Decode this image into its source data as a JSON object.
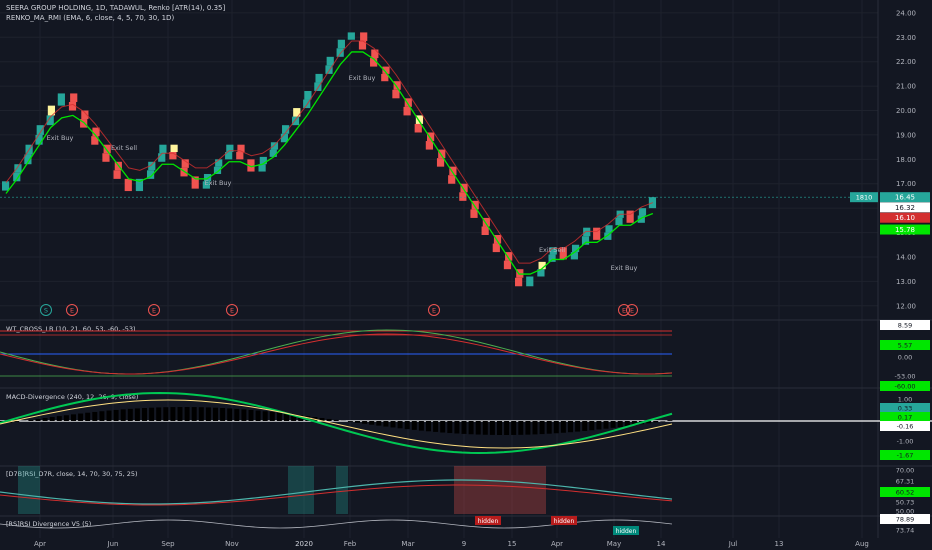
{
  "header": {
    "symbol_line": "SEERA GROUP HOLDING, 1D, TADAWUL, Renko [ATR(14), 0.35]",
    "indicator_line": "RENKO_MA_RMI (EMA, 6, close, 4, 5, 70, 30, 1D)"
  },
  "colors": {
    "background": "#131722",
    "grid": "#1e222d",
    "up_brick": "#26a69a",
    "down_brick": "#ef5350",
    "ma_line": "#00e600",
    "red_line": "#d32f2f",
    "yellow": "#ffeb3b"
  },
  "chart_data": [
    {
      "type": "renko",
      "title": "SEERA GROUP HOLDING, 1D, TADAWUL, Renko [ATR(14), 0.35]",
      "ylim": [
        11.5,
        24.2
      ],
      "y_ticks": [
        "24.00",
        "23.00",
        "22.00",
        "21.00",
        "20.00",
        "19.00",
        "18.00",
        "17.00",
        "16.00",
        "15.00",
        "14.00",
        "13.00",
        "12.00"
      ],
      "price_labels": [
        {
          "text": "16.45",
          "color": "#26a69a"
        },
        {
          "text": "16.32",
          "color": "#131722"
        },
        {
          "text": "16.10",
          "color": "#d32f2f"
        },
        {
          "text": "15.78",
          "color": "#00e600"
        }
      ],
      "countdown": "1810",
      "brick_closes": [
        17.1,
        17.8,
        18.6,
        19.4,
        20.2,
        20.7,
        20.0,
        19.3,
        18.6,
        17.9,
        17.2,
        16.7,
        17.2,
        17.9,
        18.6,
        18.0,
        17.3,
        16.8,
        17.4,
        18.0,
        18.6,
        18.0,
        17.5,
        18.1,
        18.7,
        19.4,
        20.1,
        20.8,
        21.5,
        22.2,
        22.9,
        23.2,
        22.5,
        21.8,
        21.2,
        20.5,
        19.8,
        19.1,
        18.4,
        17.7,
        17.0,
        16.3,
        15.6,
        14.9,
        14.2,
        13.5,
        12.8,
        13.2,
        13.8,
        14.4,
        13.9,
        14.5,
        15.2,
        14.7,
        15.3,
        15.9,
        15.4,
        16.0,
        16.45
      ],
      "ma_line": [
        16.6,
        17.2,
        17.9,
        18.6,
        19.3,
        19.7,
        19.8,
        19.5,
        19.0,
        18.4,
        17.8,
        17.2,
        17.1,
        17.3,
        17.8,
        17.8,
        17.5,
        17.2,
        17.2,
        17.5,
        17.9,
        17.9,
        17.7,
        17.8,
        18.1,
        18.6,
        19.2,
        19.8,
        20.5,
        21.2,
        21.9,
        22.4,
        22.4,
        22.1,
        21.6,
        21.0,
        20.3,
        19.6,
        18.9,
        18.2,
        17.5,
        16.8,
        16.1,
        15.4,
        14.7,
        14.0,
        13.3,
        13.3,
        13.5,
        13.9,
        13.9,
        14.2,
        14.6,
        14.6,
        14.9,
        15.3,
        15.3,
        15.6,
        15.78
      ],
      "annotations": [
        "Exit Buy",
        "Exit Sell",
        "Exit Buy",
        "Exit Buy",
        "Exit Sell",
        "Exit Buy"
      ],
      "markers": [
        "S",
        "E",
        "E",
        "E",
        "E",
        "E",
        "E"
      ]
    },
    {
      "type": "line",
      "title": "WT_CROSS_LB (10, 21, 60, 53, -60, -53)",
      "y_ticks": [
        "8.59",
        "5.57",
        "0.00",
        "-53.00",
        "-60.00"
      ]
    },
    {
      "type": "bar",
      "title": "MACD-Divergence (240, 12, 26, 9, close)",
      "y_ticks": [
        "1.00",
        "0.33",
        "0.17",
        "-0.16",
        "-1.00",
        "-1.67"
      ]
    },
    {
      "type": "line",
      "title": "[D7B]RSI_D7R, close, 14, 70, 30, 75, 25)",
      "y_ticks": [
        "70.00",
        "67.31",
        "60.52",
        "50.73",
        "50.00"
      ]
    },
    {
      "type": "line",
      "title": "[RS]RSI Divergence V5 (5)",
      "y_ticks": [
        "78.89",
        "73.74"
      ],
      "labels": [
        "hidden",
        "hidden",
        "hidden",
        "hidden",
        "hidden"
      ]
    }
  ],
  "time_axis": [
    "Apr",
    "Jun",
    "Sep",
    "Nov",
    "2020",
    "Feb",
    "Mar",
    "9",
    "15",
    "Apr",
    "May",
    "14",
    "Jul",
    "13",
    "Aug"
  ]
}
